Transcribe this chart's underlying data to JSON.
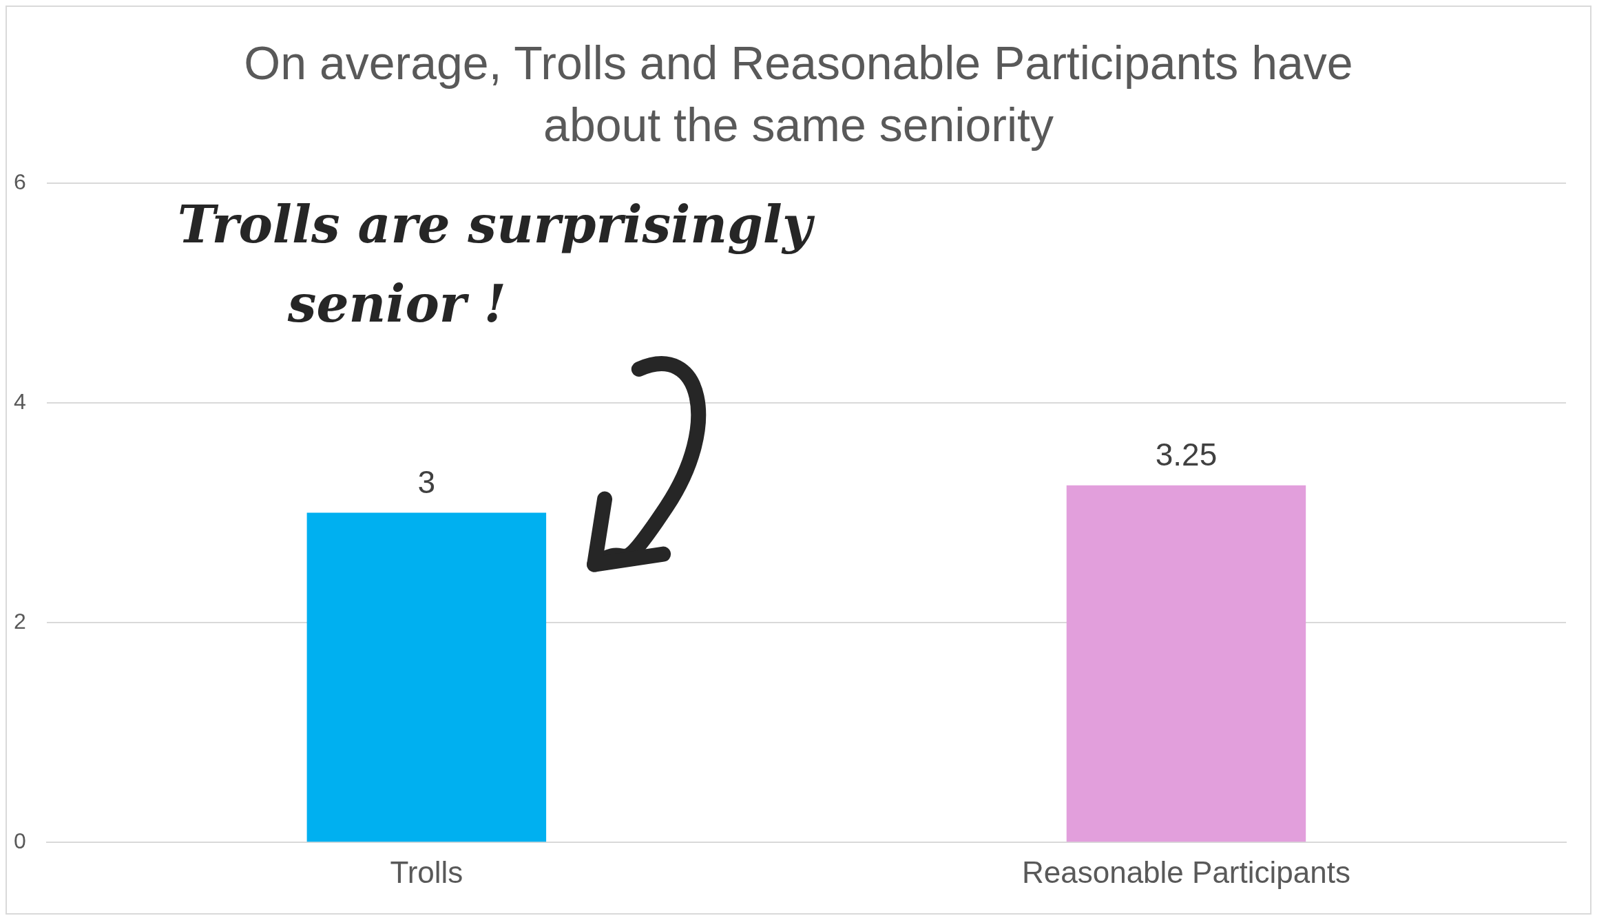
{
  "chart_data": {
    "type": "bar",
    "title": "On average, Trolls and Reasonable Participants have about the same seniority",
    "categories": [
      "Trolls",
      "Reasonable Participants"
    ],
    "values": [
      3,
      3.25
    ],
    "colors": [
      "#00b0f0",
      "#e29fdc"
    ],
    "ylim": [
      0,
      6
    ],
    "yticks": [
      0,
      2,
      4,
      6
    ],
    "grid": "y",
    "legend": false,
    "data_labels": true,
    "annotations": [
      "Trolls are surprisingly senior !"
    ]
  }
}
